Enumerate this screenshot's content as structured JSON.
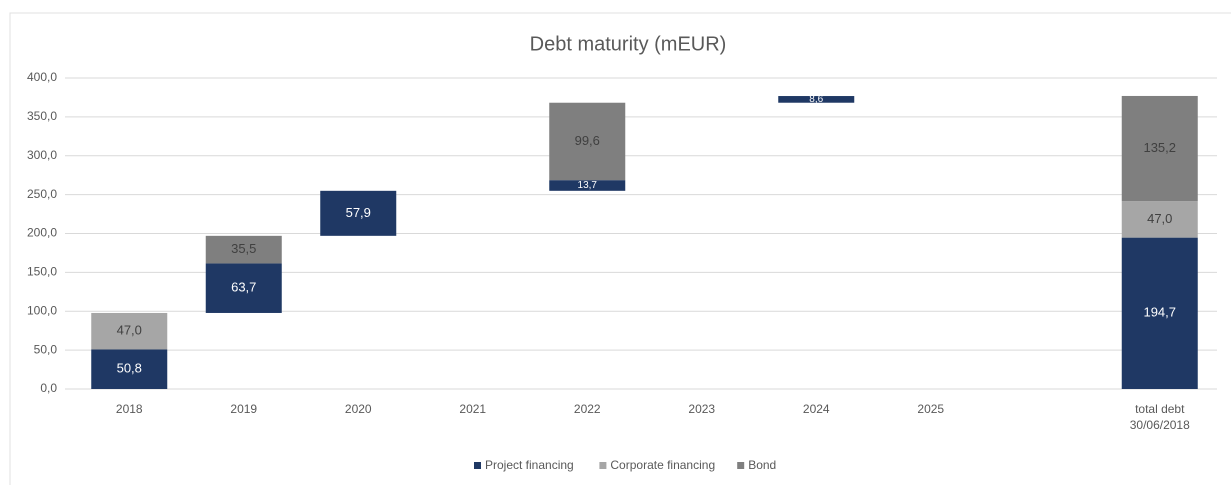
{
  "chart_data": {
    "type": "waterfall",
    "title": "Debt maturity (mEUR)",
    "categories": [
      "2018",
      "2019",
      "2020",
      "2021",
      "2022",
      "2023",
      "2024",
      "2025",
      null,
      "total debt 30/06/2018"
    ],
    "series": [
      {
        "name": "Project financing",
        "color": "#1f3864",
        "values": [
          50.8,
          63.7,
          57.9,
          null,
          13.7,
          null,
          8.6,
          null,
          null,
          194.7
        ],
        "value_labels": [
          "50,8",
          "63,7",
          "57,9",
          null,
          "13,7",
          null,
          "8,6",
          null,
          null,
          "194,7"
        ]
      },
      {
        "name": "Corporate financing",
        "color": "#a6a6a6",
        "values": [
          47.0,
          null,
          null,
          null,
          null,
          null,
          null,
          null,
          null,
          47.0
        ],
        "value_labels": [
          "47,0",
          null,
          null,
          null,
          null,
          null,
          null,
          null,
          null,
          "47,0"
        ]
      },
      {
        "name": "Bond",
        "color": "#7f7f7f",
        "values": [
          null,
          35.5,
          null,
          null,
          99.6,
          null,
          null,
          null,
          null,
          135.2
        ],
        "value_labels": [
          null,
          "35,5",
          null,
          null,
          "99,6",
          null,
          null,
          null,
          null,
          "135,2"
        ]
      }
    ],
    "ylim": [
      0,
      400
    ],
    "yticks": [
      {
        "value": 0,
        "label": "0,0"
      },
      {
        "value": 50,
        "label": "50,0"
      },
      {
        "value": 100,
        "label": "100,0"
      },
      {
        "value": 150,
        "label": "150,0"
      },
      {
        "value": 200,
        "label": "200,0"
      },
      {
        "value": 250,
        "label": "250,0"
      },
      {
        "value": 300,
        "label": "300,0"
      },
      {
        "value": 350,
        "label": "350,0"
      },
      {
        "value": 400,
        "label": "400,0"
      }
    ],
    "grid": true,
    "legend": "bottom"
  }
}
